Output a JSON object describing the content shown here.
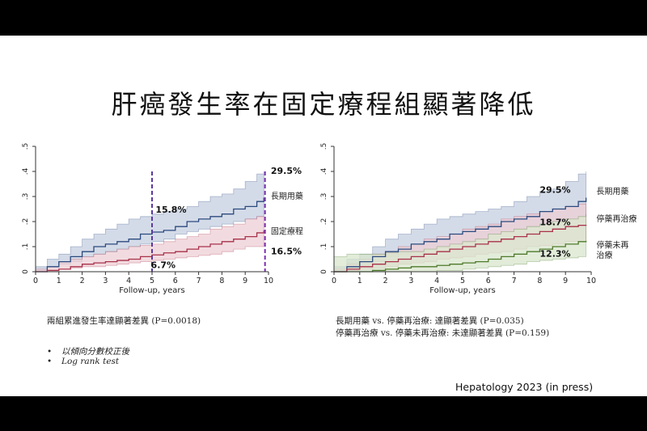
{
  "slide": {
    "title": "肝癌發生率在固定療程組顯著降低",
    "citation": "Hepatology 2023 (in press)",
    "left_note": "兩組累進發生率達顯著差異 (P=0.0018)",
    "bullets": [
      "以傾向分數校正後",
      "Log rank test"
    ],
    "right_notes": [
      "長期用藥 vs. 停藥再治療: 達顯著差異 (P=0.035)",
      "停藥再治療 vs. 停藥未再治療: 未達顯著差異 (P=0.159)"
    ]
  },
  "chart_data": [
    {
      "type": "line",
      "xlabel": "Follow-up, years",
      "ylabel": "",
      "xlim": [
        0,
        10
      ],
      "ylim": [
        0,
        0.5
      ],
      "xticks": [
        "0",
        "1",
        "2",
        "3",
        "4",
        "5",
        "6",
        "7",
        "8",
        "9",
        "10"
      ],
      "yticks": [
        "0",
        ".1",
        ".2",
        ".3",
        ".4",
        ".5"
      ],
      "grid": false,
      "vlines": [
        {
          "x": 5,
          "color": "#5b3a9e"
        },
        {
          "x": 9.85,
          "color": "#7b2fb0"
        }
      ],
      "series": [
        {
          "name": "長期用藥",
          "color": "#2b4a7e",
          "band_color": "#c5cfe0",
          "x": [
            0,
            0.5,
            1,
            1.5,
            2,
            2.5,
            3,
            3.5,
            4,
            4.5,
            5,
            5.5,
            6,
            6.5,
            7,
            7.5,
            8,
            8.5,
            9,
            9.5,
            9.8
          ],
          "y": [
            0,
            0.02,
            0.04,
            0.06,
            0.08,
            0.1,
            0.11,
            0.12,
            0.13,
            0.15,
            0.158,
            0.165,
            0.18,
            0.2,
            0.21,
            0.22,
            0.23,
            0.25,
            0.26,
            0.28,
            0.295
          ],
          "lower": [
            0,
            0.005,
            0.02,
            0.03,
            0.04,
            0.06,
            0.07,
            0.08,
            0.09,
            0.1,
            0.11,
            0.12,
            0.13,
            0.15,
            0.16,
            0.17,
            0.18,
            0.19,
            0.2,
            0.21,
            0.22
          ],
          "upper": [
            0.02,
            0.05,
            0.07,
            0.1,
            0.13,
            0.15,
            0.17,
            0.19,
            0.21,
            0.22,
            0.23,
            0.24,
            0.25,
            0.26,
            0.28,
            0.3,
            0.31,
            0.33,
            0.36,
            0.39,
            0.4
          ]
        },
        {
          "name": "固定療程",
          "color": "#a8324a",
          "band_color": "#eecfd6",
          "x": [
            0,
            0.5,
            1,
            1.5,
            2,
            2.5,
            3,
            3.5,
            4,
            4.5,
            5,
            5.5,
            6,
            6.5,
            7,
            7.5,
            8,
            8.5,
            9,
            9.5,
            9.8
          ],
          "y": [
            0,
            0.005,
            0.01,
            0.02,
            0.03,
            0.035,
            0.04,
            0.045,
            0.05,
            0.06,
            0.067,
            0.075,
            0.08,
            0.09,
            0.1,
            0.11,
            0.12,
            0.13,
            0.14,
            0.155,
            0.165
          ],
          "lower": [
            0,
            0,
            0.005,
            0.01,
            0.015,
            0.02,
            0.02,
            0.025,
            0.03,
            0.035,
            0.04,
            0.045,
            0.05,
            0.055,
            0.06,
            0.065,
            0.07,
            0.08,
            0.09,
            0.1,
            0.1
          ],
          "upper": [
            0.01,
            0.02,
            0.04,
            0.05,
            0.06,
            0.07,
            0.08,
            0.09,
            0.1,
            0.105,
            0.11,
            0.12,
            0.13,
            0.14,
            0.15,
            0.17,
            0.18,
            0.19,
            0.21,
            0.22,
            0.22
          ]
        }
      ],
      "annotations": [
        {
          "text": "15.8%",
          "x": 5.15,
          "y": 0.235
        },
        {
          "text": "6.7%",
          "x": 4.95,
          "y": 0.015
        },
        {
          "text": "29.5%",
          "x": 10.1,
          "y": 0.39
        },
        {
          "text": "16.5%",
          "x": 10.1,
          "y": 0.07
        }
      ],
      "legend_labels": [
        {
          "text": "長期用藥",
          "x": 10.1,
          "y": 0.29
        },
        {
          "text": "固定療程",
          "x": 10.1,
          "y": 0.15
        }
      ]
    },
    {
      "type": "line",
      "xlabel": "Follow-up, years",
      "ylabel": "",
      "xlim": [
        0,
        10
      ],
      "ylim": [
        0,
        0.5
      ],
      "xticks": [
        "0",
        "1",
        "2",
        "3",
        "4",
        "5",
        "6",
        "7",
        "8",
        "9",
        "10"
      ],
      "yticks": [
        "0",
        ".1",
        ".2",
        ".3",
        ".4",
        ".5"
      ],
      "grid": false,
      "vlines": [],
      "series": [
        {
          "name": "長期用藥",
          "color": "#2b4a7e",
          "band_color": "#c5cfe0",
          "x": [
            0,
            0.5,
            1,
            1.5,
            2,
            2.5,
            3,
            3.5,
            4,
            4.5,
            5,
            5.5,
            6,
            6.5,
            7,
            7.5,
            8,
            8.5,
            9,
            9.5,
            9.8
          ],
          "y": [
            0,
            0.02,
            0.04,
            0.06,
            0.08,
            0.09,
            0.11,
            0.12,
            0.13,
            0.15,
            0.16,
            0.17,
            0.18,
            0.2,
            0.21,
            0.22,
            0.24,
            0.25,
            0.26,
            0.28,
            0.295
          ],
          "lower": [
            0,
            0.005,
            0.02,
            0.03,
            0.04,
            0.06,
            0.07,
            0.08,
            0.09,
            0.1,
            0.11,
            0.12,
            0.13,
            0.15,
            0.16,
            0.17,
            0.18,
            0.19,
            0.2,
            0.21,
            0.22
          ],
          "upper": [
            0.02,
            0.05,
            0.07,
            0.1,
            0.13,
            0.15,
            0.17,
            0.19,
            0.21,
            0.22,
            0.23,
            0.24,
            0.25,
            0.26,
            0.28,
            0.3,
            0.32,
            0.33,
            0.36,
            0.39,
            0.4
          ]
        },
        {
          "name": "停藥再治療",
          "color": "#a8324a",
          "band_color": "#eecfd6",
          "x": [
            0,
            0.5,
            1,
            1.5,
            2,
            2.5,
            3,
            3.5,
            4,
            4.5,
            5,
            5.5,
            6,
            6.5,
            7,
            7.5,
            8,
            8.5,
            9,
            9.5,
            9.8
          ],
          "y": [
            0,
            0.01,
            0.02,
            0.03,
            0.04,
            0.05,
            0.06,
            0.07,
            0.08,
            0.09,
            0.1,
            0.11,
            0.12,
            0.13,
            0.14,
            0.15,
            0.16,
            0.17,
            0.18,
            0.185,
            0.187
          ],
          "lower": [
            0,
            0,
            0.005,
            0.01,
            0.015,
            0.02,
            0.03,
            0.035,
            0.04,
            0.05,
            0.055,
            0.06,
            0.07,
            0.075,
            0.08,
            0.09,
            0.1,
            0.105,
            0.11,
            0.12,
            0.12
          ],
          "upper": [
            0.01,
            0.03,
            0.05,
            0.07,
            0.08,
            0.1,
            0.11,
            0.13,
            0.14,
            0.15,
            0.17,
            0.18,
            0.19,
            0.21,
            0.22,
            0.23,
            0.24,
            0.25,
            0.26,
            0.27,
            0.27
          ]
        },
        {
          "name": "停藥未再治療",
          "color": "#4e7a2a",
          "band_color": "#d8e6cc",
          "x": [
            0,
            0.5,
            1,
            1.5,
            2,
            2.5,
            3,
            3.5,
            4,
            4.5,
            5,
            5.5,
            6,
            6.5,
            7,
            7.5,
            8,
            8.5,
            9,
            9.5,
            9.8
          ],
          "y": [
            0,
            0,
            0,
            0.005,
            0.01,
            0.015,
            0.02,
            0.02,
            0.025,
            0.03,
            0.035,
            0.04,
            0.05,
            0.06,
            0.07,
            0.08,
            0.09,
            0.1,
            0.11,
            0.12,
            0.123
          ],
          "lower": [
            0,
            0,
            0,
            0,
            0,
            0,
            0,
            0,
            0,
            0.005,
            0.005,
            0.01,
            0.015,
            0.02,
            0.025,
            0.03,
            0.04,
            0.045,
            0.05,
            0.055,
            0.06
          ],
          "upper": [
            0.06,
            0.07,
            0.07,
            0.07,
            0.075,
            0.08,
            0.08,
            0.09,
            0.1,
            0.11,
            0.12,
            0.13,
            0.15,
            0.16,
            0.17,
            0.18,
            0.19,
            0.2,
            0.21,
            0.22,
            0.23
          ]
        }
      ],
      "annotations": [
        {
          "text": "29.5%",
          "x": 8.0,
          "y": 0.315
        },
        {
          "text": "18.7%",
          "x": 8.0,
          "y": 0.185
        },
        {
          "text": "12.3%",
          "x": 8.0,
          "y": 0.06
        }
      ],
      "legend_labels": [
        {
          "text": "長期用藥",
          "x": 10.2,
          "y": 0.31
        },
        {
          "text": "停藥再治療",
          "x": 10.2,
          "y": 0.2
        },
        {
          "text": "停藥未再",
          "x": 10.2,
          "y": 0.095
        },
        {
          "text": "治療",
          "x": 10.2,
          "y": 0.055
        }
      ]
    }
  ]
}
